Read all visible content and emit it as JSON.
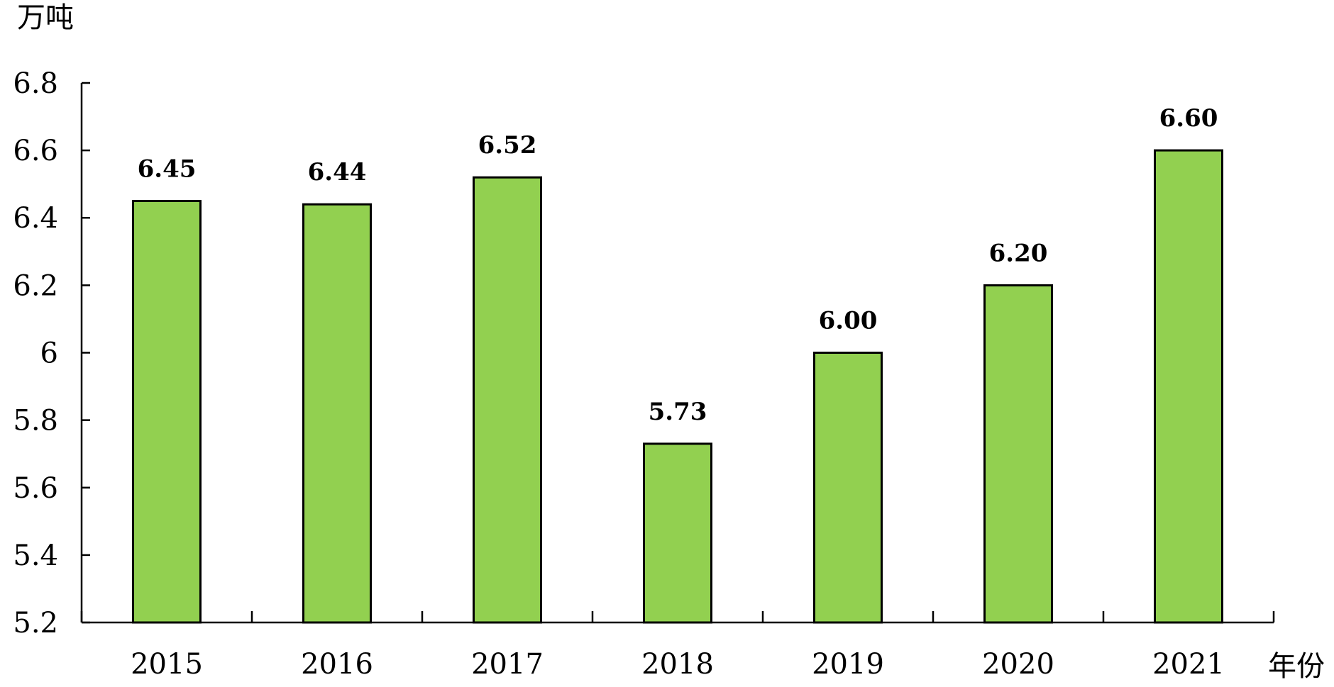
{
  "chart_data": {
    "type": "bar",
    "categories": [
      "2015",
      "2016",
      "2017",
      "2018",
      "2019",
      "2020",
      "2021"
    ],
    "values": [
      6.45,
      6.44,
      6.52,
      5.73,
      6.0,
      6.2,
      6.6
    ],
    "value_labels": [
      "6.45",
      "6.44",
      "6.52",
      "5.73",
      "6.00",
      "6.20",
      "6.60"
    ],
    "title": "",
    "xlabel": "年份",
    "ylabel": "万吨",
    "ylim": [
      5.2,
      6.8
    ],
    "yticks": [
      5.2,
      5.4,
      5.6,
      5.8,
      6,
      6.2,
      6.4,
      6.6,
      6.8
    ],
    "ytick_labels": [
      "5.2",
      "5.4",
      "5.6",
      "5.8",
      "6",
      "6.2",
      "6.4",
      "6.6",
      "6.8"
    ],
    "grid": false,
    "legend": "none",
    "bar_color": "#92d050",
    "bar_edge_color": "#000000"
  }
}
